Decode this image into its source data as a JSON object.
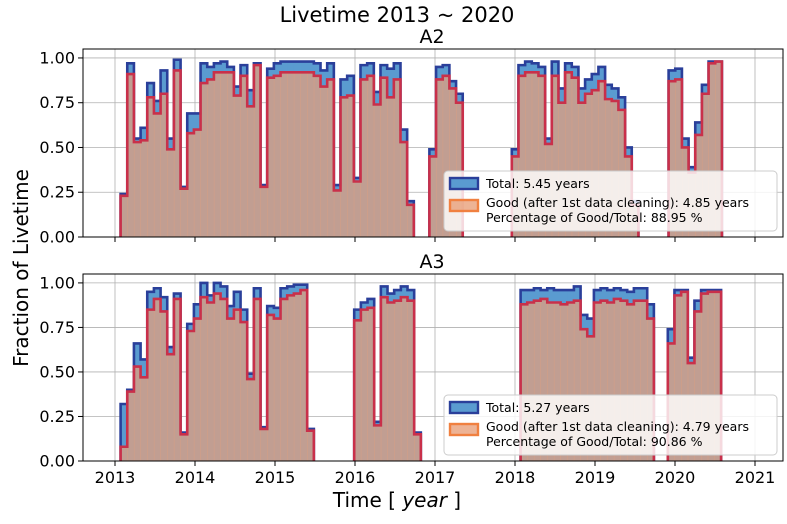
{
  "chart_data": {
    "type": "step-histogram",
    "title": "Livetime 2013 ~ 2020",
    "xlabel_main": "Time [ ",
    "xlabel_italic": "year",
    "xlabel_end": " ]",
    "ylabel": "Fraction of Livetime",
    "xlim": [
      2012.6,
      2021.35
    ],
    "ylim": [
      0,
      1.05
    ],
    "xticks": [
      "2013",
      "2014",
      "2015",
      "2016",
      "2017",
      "2018",
      "2019",
      "2020",
      "2021"
    ],
    "yticks": [
      "0.00",
      "0.25",
      "0.50",
      "0.75",
      "1.00"
    ],
    "grid": true,
    "colors": {
      "total_fill": "#5a9bd0",
      "total_edge": "#2a3f9a",
      "good_fill": "#e9a07a",
      "good_edge": "#c9304a"
    },
    "panels": [
      {
        "title": "A2",
        "legend": {
          "total": "Total: 5.45 years",
          "good": "Good (after 1st data cleaning): 4.85 years",
          "pct": "Percentage of Good/Total: 88.95 %"
        },
        "series": [
          {
            "name": "Total",
            "segments": [
              {
                "start": 2013.07,
                "width": 0.0833,
                "values": [
                  0.24,
                  0.97,
                  0.55,
                  0.61,
                  0.86,
                  0.76,
                  0.93,
                  0.55,
                  0.99,
                  0.28,
                  0.69,
                  0.69,
                  0.97,
                  0.95,
                  0.97,
                  0.98,
                  0.95,
                  0.84,
                  0.96,
                  0.82,
                  0.97,
                  0.29,
                  0.94,
                  0.97,
                  0.98,
                  0.98,
                  0.98,
                  0.98,
                  0.98,
                  0.97,
                  0.93,
                  0.97,
                  0.29,
                  0.88,
                  0.9,
                  0.33,
                  0.96,
                  0.97,
                  0.81,
                  0.96,
                  0.94,
                  0.97,
                  0.6,
                  0.2
                ]
              },
              {
                "start": 2016.93,
                "width": 0.0833,
                "values": [
                  0.49,
                  0.95,
                  0.96,
                  0.87,
                  0.8
                ]
              },
              {
                "start": 2017.96,
                "width": 0.0833,
                "values": [
                  0.49,
                  0.96,
                  0.98,
                  0.97,
                  0.95,
                  0.55,
                  0.98,
                  0.83,
                  0.97,
                  0.95,
                  0.83,
                  0.88,
                  0.91,
                  0.95,
                  0.85,
                  0.83,
                  0.78,
                  0.5,
                  0.2
                ]
              },
              {
                "start": 2019.92,
                "width": 0.0833,
                "values": [
                  0.93,
                  0.94,
                  0.55,
                  0.39,
                  0.64,
                  0.85,
                  0.98,
                  0.98
                ]
              }
            ]
          },
          {
            "name": "Good",
            "segments": [
              {
                "start": 2013.07,
                "width": 0.0833,
                "values": [
                  0.23,
                  0.91,
                  0.53,
                  0.54,
                  0.78,
                  0.69,
                  0.8,
                  0.49,
                  0.93,
                  0.27,
                  0.58,
                  0.6,
                  0.86,
                  0.88,
                  0.92,
                  0.92,
                  0.92,
                  0.79,
                  0.9,
                  0.73,
                  0.96,
                  0.28,
                  0.89,
                  0.9,
                  0.92,
                  0.92,
                  0.92,
                  0.92,
                  0.92,
                  0.9,
                  0.84,
                  0.88,
                  0.26,
                  0.78,
                  0.79,
                  0.31,
                  0.88,
                  0.9,
                  0.74,
                  0.89,
                  0.78,
                  0.88,
                  0.53,
                  0.18
                ]
              },
              {
                "start": 2016.93,
                "width": 0.0833,
                "values": [
                  0.45,
                  0.88,
                  0.9,
                  0.83,
                  0.75
                ]
              },
              {
                "start": 2017.96,
                "width": 0.0833,
                "values": [
                  0.45,
                  0.9,
                  0.92,
                  0.92,
                  0.9,
                  0.52,
                  0.9,
                  0.75,
                  0.92,
                  0.89,
                  0.75,
                  0.8,
                  0.82,
                  0.87,
                  0.77,
                  0.76,
                  0.71,
                  0.45,
                  0.18
                ]
              },
              {
                "start": 2019.92,
                "width": 0.0833,
                "values": [
                  0.87,
                  0.88,
                  0.5,
                  0.36,
                  0.57,
                  0.8,
                  0.97,
                  0.98
                ]
              }
            ]
          }
        ]
      },
      {
        "title": "A3",
        "legend": {
          "total": "Total: 5.27 years",
          "good": "Good (after 1st data cleaning): 4.79 years",
          "pct": "Percentage of Good/Total: 90.86 %"
        },
        "series": [
          {
            "name": "Total",
            "segments": [
              {
                "start": 2013.07,
                "width": 0.0833,
                "values": [
                  0.32,
                  0.4,
                  0.66,
                  0.57,
                  0.95,
                  0.97,
                  0.92,
                  0.64,
                  0.94,
                  0.16,
                  0.77,
                  0.88,
                  1.0,
                  0.93,
                  1.0,
                  0.98,
                  0.87,
                  0.95,
                  0.85,
                  0.49,
                  0.97,
                  0.19,
                  0.87,
                  0.86,
                  0.97,
                  0.98,
                  0.99,
                  0.99,
                  0.18
                ]
              },
              {
                "start": 2015.99,
                "width": 0.0833,
                "values": [
                  0.85,
                  0.89,
                  0.91,
                  0.22,
                  0.98,
                  0.94,
                  0.96,
                  0.98,
                  0.96,
                  0.16
                ]
              },
              {
                "start": 2018.07,
                "width": 0.0833,
                "values": [
                  0.96,
                  0.96,
                  0.97,
                  0.96,
                  0.97,
                  0.96,
                  0.96,
                  0.96,
                  0.98,
                  0.82,
                  0.8,
                  0.96,
                  0.97,
                  0.96,
                  0.97,
                  0.96,
                  0.95,
                  0.97,
                  0.97,
                  0.88
                ]
              },
              {
                "start": 2019.91,
                "width": 0.0833,
                "values": [
                  0.74,
                  0.96,
                  0.96,
                  0.58,
                  0.9,
                  0.96,
                  0.96,
                  0.96
                ]
              }
            ]
          },
          {
            "name": "Good",
            "segments": [
              {
                "start": 2013.07,
                "width": 0.0833,
                "values": [
                  0.08,
                  0.39,
                  0.53,
                  0.47,
                  0.85,
                  0.91,
                  0.84,
                  0.6,
                  0.91,
                  0.15,
                  0.73,
                  0.8,
                  0.92,
                  0.89,
                  0.94,
                  0.91,
                  0.8,
                  0.85,
                  0.78,
                  0.46,
                  0.91,
                  0.18,
                  0.82,
                  0.8,
                  0.91,
                  0.93,
                  0.94,
                  0.96,
                  0.17
                ]
              },
              {
                "start": 2015.99,
                "width": 0.0833,
                "values": [
                  0.79,
                  0.85,
                  0.86,
                  0.2,
                  0.92,
                  0.89,
                  0.9,
                  0.92,
                  0.9,
                  0.15
                ]
              },
              {
                "start": 2018.07,
                "width": 0.0833,
                "values": [
                  0.88,
                  0.89,
                  0.9,
                  0.91,
                  0.89,
                  0.89,
                  0.88,
                  0.89,
                  0.9,
                  0.74,
                  0.7,
                  0.89,
                  0.9,
                  0.89,
                  0.91,
                  0.9,
                  0.88,
                  0.9,
                  0.9,
                  0.8
                ]
              },
              {
                "start": 2019.91,
                "width": 0.0833,
                "values": [
                  0.66,
                  0.93,
                  0.95,
                  0.55,
                  0.84,
                  0.94,
                  0.95,
                  0.95
                ]
              }
            ]
          }
        ]
      }
    ]
  }
}
